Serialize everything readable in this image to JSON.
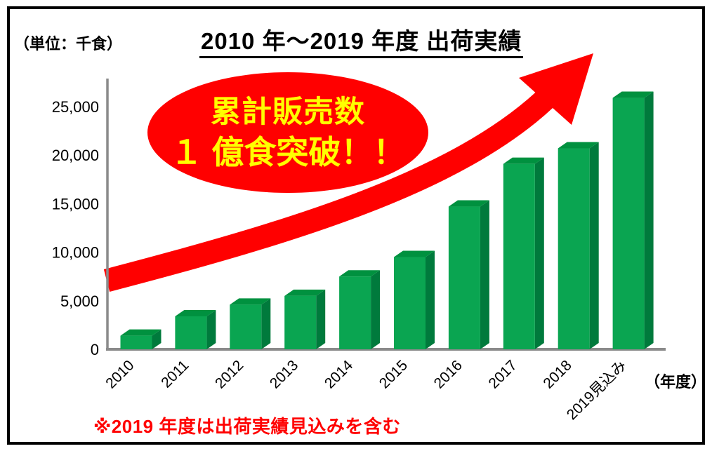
{
  "chart_data": {
    "type": "bar",
    "title": "2010 年～2019 年度 出荷実績",
    "unit_label": "（単位：千食）",
    "x_axis_suffix_label": "（年度）",
    "categories": [
      "2010",
      "2011",
      "2012",
      "2013",
      "2014",
      "2015",
      "2016",
      "2017",
      "2018",
      "2019見込み"
    ],
    "values": [
      1400,
      3400,
      4600,
      5500,
      7500,
      9500,
      14700,
      19100,
      20700,
      25900
    ],
    "ylim": [
      0,
      26000
    ],
    "yticks": [
      0,
      5000,
      10000,
      15000,
      20000,
      25000
    ],
    "ytick_labels": [
      "0",
      "5,000",
      "10,000",
      "15,000",
      "20,000",
      "25,000"
    ],
    "grid": false,
    "legend": false,
    "bar_style": "3d",
    "annotation": {
      "line1": "累計販売数",
      "line2": "１ 億食突破！！"
    },
    "footnote": "※2019 年度は出荷実績見込みを含む",
    "colors": {
      "bar_front": "#0AA551",
      "bar_top": "#00913F",
      "bar_side": "#007A3C",
      "arrow": "#FF0000",
      "ellipse_fill": "#FF0000",
      "annotation_text": "#FFFF00",
      "axis": "#8A8A8A",
      "tick_text": "#000000",
      "footnote_text": "#FF0000"
    }
  }
}
